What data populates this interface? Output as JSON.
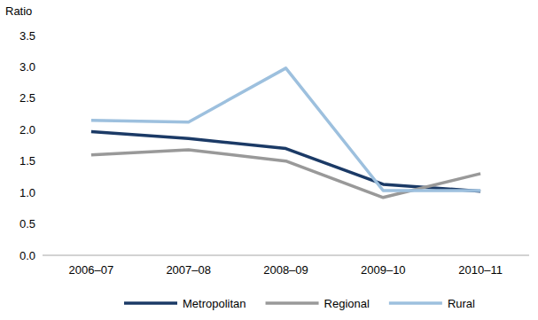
{
  "chart_data": {
    "type": "line",
    "y_label": "Ratio",
    "categories": [
      "2006–07",
      "2007–08",
      "2008–09",
      "2009–10",
      "2010–11"
    ],
    "series": [
      {
        "name": "Metropolitan",
        "color": "#1b3a66",
        "values": [
          1.97,
          1.86,
          1.7,
          1.13,
          1.02
        ]
      },
      {
        "name": "Regional",
        "color": "#999999",
        "values": [
          1.6,
          1.68,
          1.5,
          0.92,
          1.3
        ]
      },
      {
        "name": "Rural",
        "color": "#9dc0de",
        "values": [
          2.15,
          2.12,
          2.98,
          1.03,
          1.03
        ]
      }
    ],
    "ylim": [
      0,
      3.5
    ],
    "yticks": [
      {
        "value": 0,
        "label": "0.0"
      },
      0.5,
      {
        "value": 1,
        "label": "1.0"
      },
      1.5,
      {
        "value": 2,
        "label": "2.0"
      },
      2.5,
      {
        "value": 3,
        "label": "3.0"
      },
      3.5
    ],
    "grid": false,
    "legend": "bottom"
  }
}
